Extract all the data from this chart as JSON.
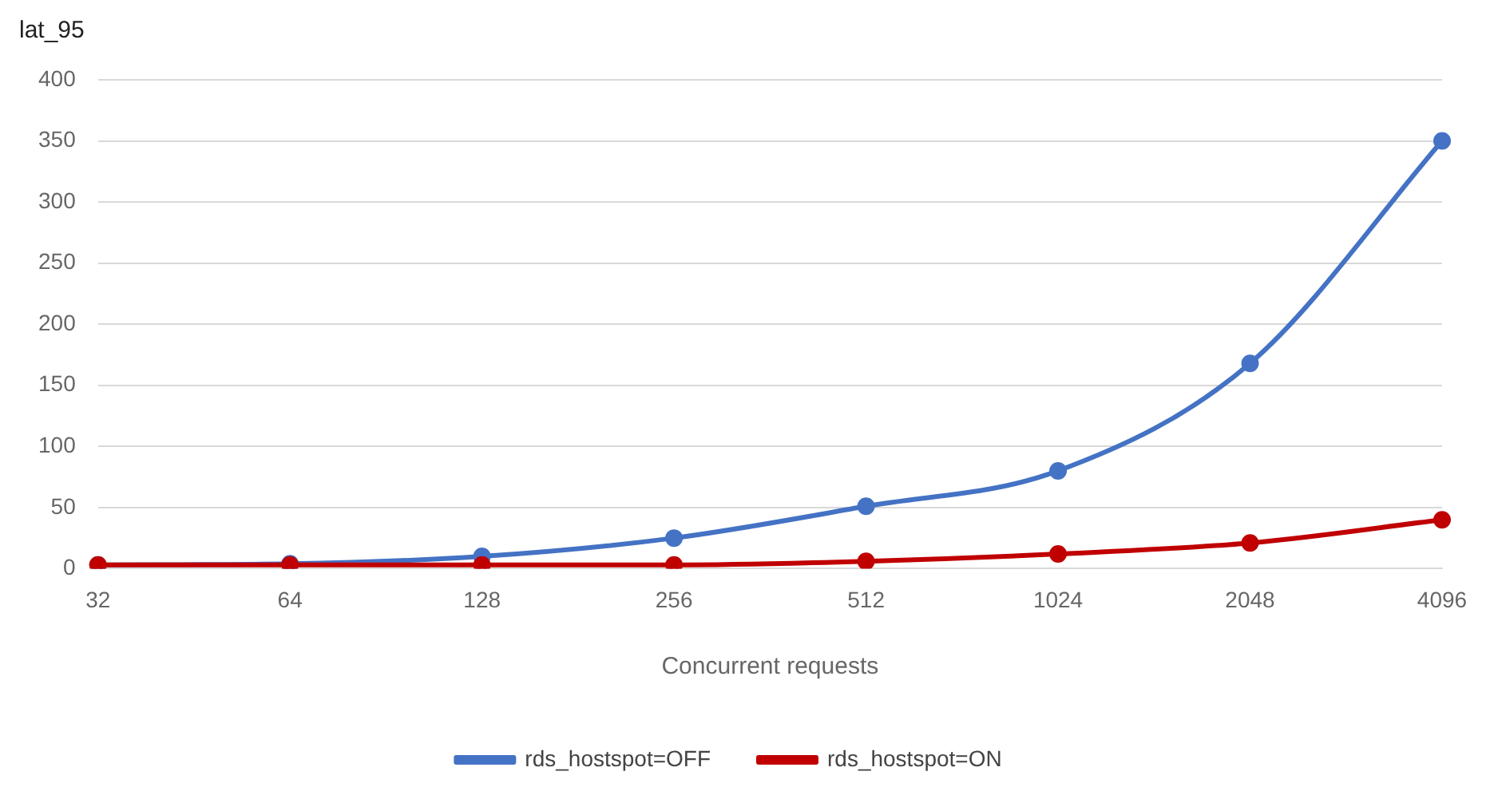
{
  "chart_data": {
    "type": "line",
    "ylabel": "lat_95",
    "xlabel": "Concurrent requests",
    "categories": [
      "32",
      "64",
      "128",
      "256",
      "512",
      "1024",
      "2048",
      "4096"
    ],
    "series": [
      {
        "name": "rds_hostspot=OFF",
        "color": "#4472c4",
        "values": [
          3,
          4,
          10,
          25,
          51,
          80,
          168,
          350
        ]
      },
      {
        "name": "rds_hostspot=ON",
        "color": "#c00000",
        "values": [
          3,
          3,
          3,
          3,
          6,
          12,
          21,
          40
        ]
      }
    ],
    "ylim": [
      0,
      400
    ],
    "yticks": [
      0,
      50,
      100,
      150,
      200,
      250,
      300,
      350,
      400
    ],
    "grid": "y",
    "legend": "bottom",
    "marker": "circle",
    "line_style": "solid"
  }
}
